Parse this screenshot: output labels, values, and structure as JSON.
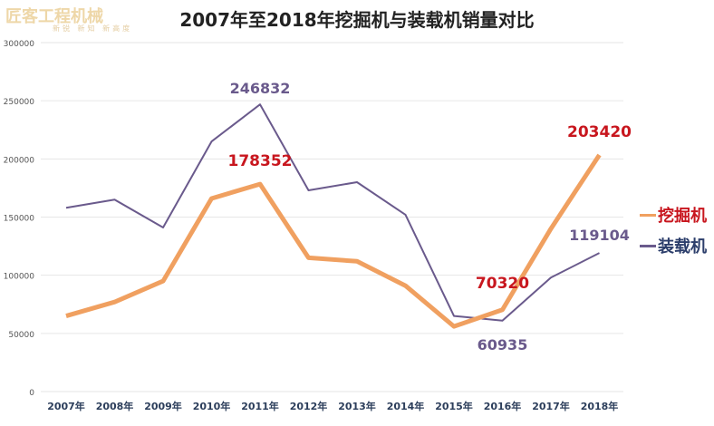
{
  "header": {
    "title": "2007年至2018年挖掘机与装载机销量对比"
  },
  "watermark": {
    "brand": "匠客工程机械",
    "slogan": "新锐 新知 新高度"
  },
  "colors": {
    "excavator": "#f0a060",
    "loader": "#6a5a8c",
    "excavator_label": "#c8161e",
    "loader_label": "#6a5a8c",
    "legend_loader": "#2c3e6b",
    "grid": "#e6e6e6"
  },
  "chart_data": {
    "type": "line",
    "title": "2007年至2018年挖掘机与装载机销量对比",
    "categories": [
      "2007年",
      "2008年",
      "2009年",
      "2010年",
      "2011年",
      "2012年",
      "2013年",
      "2014年",
      "2015年",
      "2016年",
      "2017年",
      "2018年"
    ],
    "ylim": [
      0,
      300000
    ],
    "yticks": [
      0,
      50000,
      100000,
      150000,
      200000,
      250000,
      300000
    ],
    "grid": true,
    "legend": "right",
    "series": [
      {
        "name": "挖掘机",
        "values": [
          65000,
          77000,
          95000,
          166000,
          178352,
          115000,
          112000,
          91000,
          56000,
          70320,
          140000,
          203420
        ],
        "labels": {
          "4": "178352",
          "9": "70320",
          "11": "203420"
        }
      },
      {
        "name": "装载机",
        "values": [
          158000,
          165000,
          141000,
          215000,
          246832,
          173000,
          180000,
          152000,
          65000,
          60935,
          98000,
          119104
        ],
        "labels": {
          "4": "246832",
          "9": "60935",
          "11": "119104"
        }
      }
    ]
  }
}
